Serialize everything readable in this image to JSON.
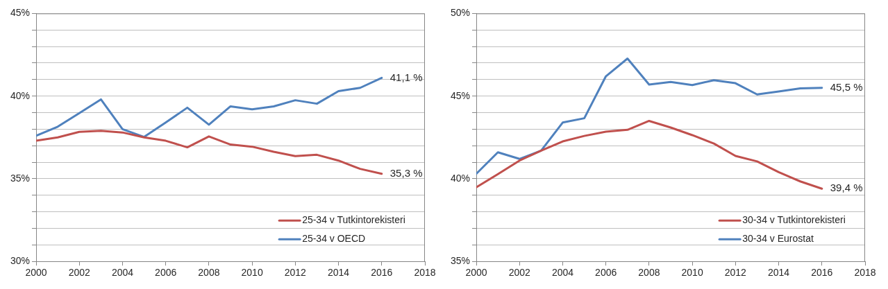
{
  "chart_data": [
    {
      "type": "line",
      "x": [
        2000,
        2001,
        2002,
        2003,
        2004,
        2005,
        2006,
        2007,
        2008,
        2009,
        2010,
        2011,
        2012,
        2013,
        2014,
        2015,
        2016
      ],
      "series": [
        {
          "name": "25-34 v Tutkintorekisteri",
          "color": "#c0504d",
          "values": [
            37.3,
            37.5,
            37.84,
            37.9,
            37.8,
            37.5,
            37.3,
            36.9,
            37.56,
            37.07,
            36.94,
            36.63,
            36.37,
            36.45,
            36.1,
            35.6,
            35.3
          ],
          "value_labels": [
            null,
            null,
            null,
            null,
            null,
            null,
            null,
            null,
            null,
            null,
            null,
            null,
            null,
            null,
            null,
            null,
            "35,3 %"
          ]
        },
        {
          "name": "25-34 v OECD",
          "color": "#4f81bd",
          "values": [
            37.6,
            38.15,
            38.97,
            39.8,
            38.0,
            37.53,
            38.4,
            39.3,
            38.27,
            39.38,
            39.2,
            39.38,
            39.75,
            39.54,
            40.3,
            40.5,
            41.1
          ],
          "value_labels": [
            null,
            null,
            null,
            null,
            null,
            null,
            null,
            null,
            null,
            null,
            null,
            null,
            null,
            null,
            null,
            null,
            "41,1 %"
          ]
        }
      ],
      "xlim": [
        2000,
        2018
      ],
      "xticks": [
        2000,
        2002,
        2004,
        2006,
        2008,
        2010,
        2012,
        2014,
        2016,
        2018
      ],
      "ylim": [
        30,
        45
      ],
      "yticks": [
        {
          "value": 30,
          "label": "30%"
        },
        {
          "value": 31,
          "label": null
        },
        {
          "value": 32,
          "label": null
        },
        {
          "value": 33,
          "label": null
        },
        {
          "value": 34,
          "label": null
        },
        {
          "value": 35,
          "label": "35%"
        },
        {
          "value": 36,
          "label": null
        },
        {
          "value": 37,
          "label": null
        },
        {
          "value": 38,
          "label": null
        },
        {
          "value": 39,
          "label": null
        },
        {
          "value": 40,
          "label": "40%"
        },
        {
          "value": 41,
          "label": null
        },
        {
          "value": 42,
          "label": null
        },
        {
          "value": 43,
          "label": null
        },
        {
          "value": 44,
          "label": null
        },
        {
          "value": 45,
          "label": "45%"
        }
      ],
      "grid": "y",
      "legend": "bottom right",
      "marker": "none",
      "line_style": "solid"
    },
    {
      "type": "line",
      "x": [
        2000,
        2001,
        2002,
        2003,
        2004,
        2005,
        2006,
        2007,
        2008,
        2009,
        2010,
        2011,
        2012,
        2013,
        2014,
        2015,
        2016
      ],
      "series": [
        {
          "name": "30-34 v Tutkintorekisteri",
          "color": "#c0504d",
          "values": [
            39.48,
            40.28,
            41.1,
            41.7,
            42.26,
            42.59,
            42.85,
            42.96,
            43.5,
            43.1,
            42.64,
            42.13,
            41.38,
            41.05,
            40.4,
            39.84,
            39.4
          ],
          "value_labels": [
            null,
            null,
            null,
            null,
            null,
            null,
            null,
            null,
            null,
            null,
            null,
            null,
            null,
            null,
            null,
            null,
            "39,4 %"
          ]
        },
        {
          "name": "30-34 v Eurostat",
          "color": "#4f81bd",
          "values": [
            40.3,
            41.6,
            41.2,
            41.7,
            43.4,
            43.66,
            46.2,
            47.27,
            45.7,
            45.86,
            45.67,
            45.96,
            45.78,
            45.1,
            45.28,
            45.47,
            45.5
          ],
          "value_labels": [
            null,
            null,
            null,
            null,
            null,
            null,
            null,
            null,
            null,
            null,
            null,
            null,
            null,
            null,
            null,
            null,
            "45,5 %"
          ]
        }
      ],
      "xlim": [
        2000,
        2018
      ],
      "xticks": [
        2000,
        2002,
        2004,
        2006,
        2008,
        2010,
        2012,
        2014,
        2016,
        2018
      ],
      "ylim": [
        35,
        50
      ],
      "yticks": [
        {
          "value": 35,
          "label": "35%"
        },
        {
          "value": 36,
          "label": null
        },
        {
          "value": 37,
          "label": null
        },
        {
          "value": 38,
          "label": null
        },
        {
          "value": 39,
          "label": null
        },
        {
          "value": 40,
          "label": "40%"
        },
        {
          "value": 41,
          "label": null
        },
        {
          "value": 42,
          "label": null
        },
        {
          "value": 43,
          "label": null
        },
        {
          "value": 44,
          "label": null
        },
        {
          "value": 45,
          "label": "45%"
        },
        {
          "value": 46,
          "label": null
        },
        {
          "value": 47,
          "label": null
        },
        {
          "value": 48,
          "label": null
        },
        {
          "value": 49,
          "label": null
        },
        {
          "value": 50,
          "label": "50%"
        }
      ],
      "grid": "y",
      "legend": "bottom right",
      "marker": "none",
      "line_style": "solid"
    }
  ]
}
